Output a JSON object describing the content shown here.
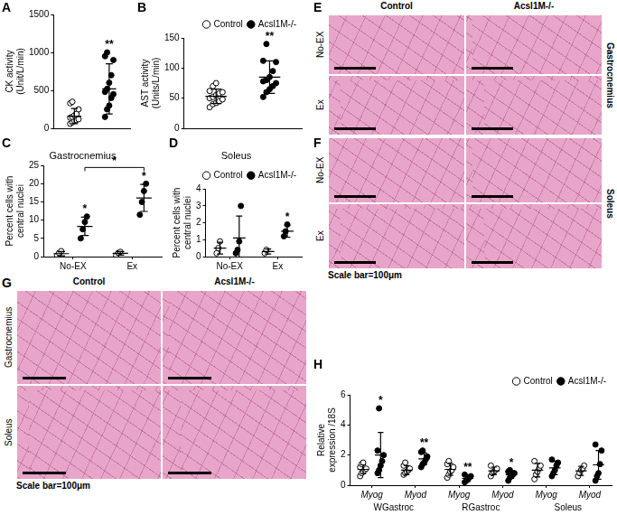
{
  "chart_data": [
    {
      "panel": "A",
      "type": "scatter",
      "y_label": "CK activity (Unit/L/min)",
      "ylim": [
        0,
        1500
      ],
      "yticks": [
        0,
        500,
        1000,
        1500
      ],
      "grid": false,
      "tick_labels": "y",
      "series": [
        {
          "name": "Control",
          "color": "#000000",
          "marker": "circle-open",
          "values": [
            60,
            80,
            100,
            110,
            120,
            140,
            150,
            170,
            190,
            250,
            330,
            350
          ],
          "mean": 160,
          "sd": 100
        },
        {
          "name": "Acsl1M-/-",
          "color": "#000000",
          "marker": "circle",
          "values": [
            150,
            250,
            300,
            400,
            450,
            480,
            520,
            600,
            700,
            900,
            950,
            1000
          ],
          "mean": 520,
          "sd": 330
        }
      ],
      "annotations": [
        {
          "text": "**",
          "series": "Acsl1M-/-"
        }
      ]
    },
    {
      "panel": "B",
      "type": "scatter",
      "y_label": "AST activity (Units/L/min)",
      "ylim": [
        0,
        150
      ],
      "yticks": [
        0,
        50,
        100,
        150
      ],
      "grid": false,
      "tick_labels": "y",
      "legend": "top-right",
      "series": [
        {
          "name": "Control",
          "color": "#000000",
          "marker": "circle-open",
          "values": [
            35,
            40,
            42,
            45,
            48,
            50,
            52,
            55,
            58,
            60,
            62,
            70,
            75
          ],
          "mean": 53,
          "sd": 12
        },
        {
          "name": "Acsl1M-/-",
          "color": "#000000",
          "marker": "circle",
          "values": [
            52,
            60,
            65,
            70,
            75,
            78,
            80,
            85,
            95,
            110,
            112,
            140
          ],
          "mean": 85,
          "sd": 27
        }
      ],
      "annotations": [
        {
          "text": "**",
          "series": "Acsl1M-/-"
        }
      ]
    },
    {
      "panel": "C",
      "type": "scatter",
      "title": "Gastrocnemius",
      "y_label": "Percent cells with central nuclei",
      "categories": [
        "No-EX",
        "Ex"
      ],
      "ylim": [
        0,
        25
      ],
      "yticks": [
        0,
        5,
        10,
        15,
        20,
        25
      ],
      "grid": false,
      "series": [
        {
          "name": "Control",
          "color": "#000000",
          "marker": "circle-open",
          "values": [
            [
              0.3,
              1.0,
              1.5
            ],
            [
              0.3,
              1.0,
              1.3
            ]
          ],
          "mean": [
            0.8,
            0.9
          ],
          "sd": [
            0.6,
            0.5
          ]
        },
        {
          "name": "Acsl1M-/-",
          "color": "#000000",
          "marker": "circle",
          "values": [
            [
              5,
              7.5,
              9.5,
              11
            ],
            [
              11.5,
              15,
              18,
              20
            ]
          ],
          "mean": [
            8.3,
            16.1
          ],
          "sd": [
            2.5,
            3.7
          ]
        }
      ],
      "annotations": [
        {
          "text": "*",
          "series": "Acsl1M-/-",
          "category": "No-EX"
        },
        {
          "text": "*",
          "series": "Acsl1M-/-",
          "category": "Ex"
        },
        {
          "text": "*",
          "series": "Acsl1M-/-",
          "from": "No-EX",
          "to": "Ex"
        }
      ]
    },
    {
      "panel": "D",
      "type": "scatter",
      "title": "Soleus",
      "y_label": "Percent cells with central nuclei",
      "categories": [
        "No-EX",
        "Ex"
      ],
      "ylim": [
        0,
        4
      ],
      "yticks": [
        0,
        1,
        2,
        3,
        4
      ],
      "grid": false,
      "legend": "top-right",
      "series": [
        {
          "name": "Control",
          "color": "#000000",
          "marker": "circle-open",
          "values": [
            [
              0.2,
              0.5,
              0.9
            ],
            [
              0.2,
              0.4
            ]
          ],
          "mean": [
            0.5,
            0.3
          ],
          "sd": [
            0.35,
            0.15
          ]
        },
        {
          "name": "Acsl1M-/-",
          "color": "#000000",
          "marker": "circle",
          "values": [
            [
              0.2,
              0.4,
              0.9,
              3.0
            ],
            [
              1.2,
              1.5,
              1.9
            ]
          ],
          "mean": [
            1.1,
            1.5
          ],
          "sd": [
            1.3,
            0.35
          ]
        }
      ],
      "annotations": [
        {
          "text": "*",
          "series": "Acsl1M-/-",
          "category": "Ex"
        }
      ]
    },
    {
      "panel": "H",
      "type": "scatter",
      "y_label": "Relative expression /18S",
      "categories": [
        "Myog",
        "Myod",
        "Myog",
        "Myod",
        "Myog",
        "Myod"
      ],
      "groups": [
        "WGastroc",
        "RGastroc",
        "Soleus"
      ],
      "ylim": [
        0,
        6
      ],
      "yticks": [
        0,
        2,
        4,
        6
      ],
      "grid": false,
      "legend": "top-right",
      "series": [
        {
          "name": "Control",
          "color": "#000000",
          "marker": "circle-open",
          "values": [
            [
              0.6,
              0.8,
              0.9,
              1.0,
              1.1,
              1.2,
              1.4,
              1.5
            ],
            [
              0.7,
              0.8,
              0.9,
              1.0,
              1.1,
              1.3,
              1.5
            ],
            [
              0.5,
              0.7,
              0.9,
              1.0,
              1.2,
              1.4,
              1.6
            ],
            [
              0.6,
              0.8,
              0.9,
              1.0,
              1.1,
              1.3
            ],
            [
              0.4,
              0.7,
              0.9,
              1.1,
              1.3,
              1.6
            ],
            [
              0.6,
              0.8,
              1.0,
              1.1,
              1.3
            ]
          ],
          "mean": [
            1.05,
            1.0,
            1.05,
            0.95,
            1.0,
            0.95
          ],
          "sd": [
            0.3,
            0.3,
            0.4,
            0.25,
            0.45,
            0.3
          ]
        },
        {
          "name": "Acsl1M-/-",
          "color": "#000000",
          "marker": "circle",
          "values": [
            [
              0.8,
              1.0,
              1.3,
              1.6,
              2.0,
              2.3,
              5.1
            ],
            [
              1.2,
              1.4,
              1.5,
              1.7,
              1.9,
              2.2,
              2.3
            ],
            [
              0.2,
              0.3,
              0.4,
              0.5,
              0.6,
              0.7
            ],
            [
              0.3,
              0.5,
              0.6,
              0.7,
              0.8,
              0.9,
              1.0
            ],
            [
              0.6,
              0.8,
              1.0,
              1.3,
              1.5,
              1.7
            ],
            [
              0.3,
              0.6,
              0.8,
              1.4,
              2.3,
              2.7
            ]
          ],
          "mean": [
            2.0,
            1.75,
            0.45,
            0.7,
            1.15,
            1.35
          ],
          "sd": [
            1.5,
            0.4,
            0.2,
            0.25,
            0.45,
            0.95
          ]
        }
      ],
      "annotations": [
        {
          "text": "*",
          "series": "Acsl1M-/-",
          "group": "WGastroc",
          "category": "Myog"
        },
        {
          "text": "**",
          "series": "Acsl1M-/-",
          "group": "WGastroc",
          "category": "Myod"
        },
        {
          "text": "**",
          "series": "Acsl1M-/-",
          "group": "RGastroc",
          "category": "Myog"
        },
        {
          "text": "*",
          "series": "Acsl1M-/-",
          "group": "RGastroc",
          "category": "Myod"
        }
      ]
    }
  ],
  "panels": [
    {
      "panel": "E",
      "columns": [
        "Control",
        "Acsl1M-/-"
      ],
      "rows": [
        "No-EX",
        "Ex"
      ],
      "side_label": "Gastrocnemius"
    },
    {
      "panel": "F",
      "rows": [
        "No-EX",
        "Ex"
      ],
      "side_label": "Soleus",
      "scale_bar": "Scale bar=100μm"
    },
    {
      "panel": "G",
      "columns": [
        "Control",
        "Acsl1M-/-"
      ],
      "rows": [
        "Gastrocnemius",
        "Soleus"
      ],
      "scale_bar": "Scale bar=100μm"
    }
  ]
}
